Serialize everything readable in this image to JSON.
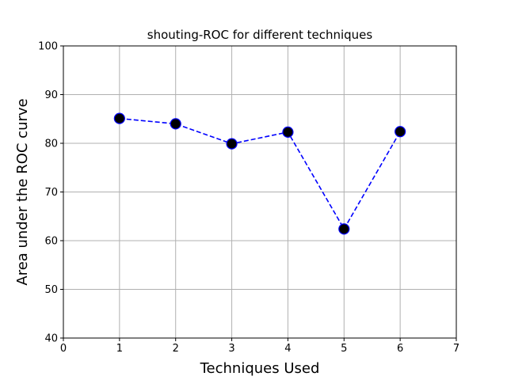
{
  "chart_data": {
    "type": "line",
    "title": "shouting-ROC for different techniques",
    "xlabel": "Techniques Used",
    "ylabel": "Area under the ROC curve",
    "x": [
      1,
      2,
      3,
      4,
      5,
      6
    ],
    "series": [
      {
        "values": [
          85.1,
          84.0,
          79.9,
          82.3,
          62.4,
          82.4
        ],
        "color": "#0000ff",
        "line_style": "dashed",
        "marker": "circle",
        "marker_face_color": "#000000",
        "marker_edge_color": "#0000ff"
      }
    ],
    "xlim": [
      0,
      7
    ],
    "ylim": [
      40,
      100
    ],
    "xticks": [
      0,
      1,
      2,
      3,
      4,
      5,
      6,
      7
    ],
    "yticks": [
      40,
      50,
      60,
      70,
      80,
      90,
      100
    ],
    "grid": true,
    "grid_color": "#b0b0b0"
  }
}
